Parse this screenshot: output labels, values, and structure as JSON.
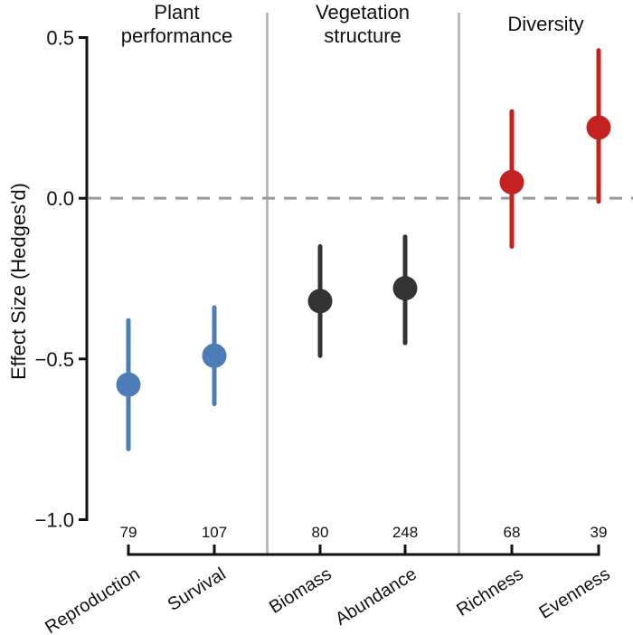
{
  "figure": {
    "group_headers": [
      {
        "label": "Plant\nperformance"
      },
      {
        "label": "Vegetation\nstructure"
      },
      {
        "label": "Diversity"
      }
    ],
    "y_axis_title": "Effect Size (Hedges'd)"
  },
  "chart_data": {
    "type": "scatter",
    "subtype": "point-range-forest-plot",
    "title": "",
    "xlabel": "",
    "ylabel": "Effect Size (Hedges'd)",
    "ylim": [
      -1.0,
      0.5
    ],
    "yticks": [
      0.5,
      0.0,
      -0.5,
      -1.0
    ],
    "ytick_labels": [
      "0.5",
      "0.0",
      "−0.5",
      "−1.0"
    ],
    "zero_reference_line": 0.0,
    "grid": false,
    "legend": "none",
    "colors": {
      "plant_performance": "#4d7db8",
      "vegetation_structure": "#333333",
      "diversity": "#c42221",
      "zero_line": "#999999",
      "panel_divider": "#b0b0b0",
      "axis": "#111111",
      "text": "#111111"
    },
    "groups": [
      {
        "name": "Plant performance",
        "color": "#4d7db8",
        "points": [
          {
            "category": "Reproduction",
            "n": "79",
            "mean": -0.58,
            "ci_low": -0.78,
            "ci_high": -0.38
          },
          {
            "category": "Survival",
            "n": "107",
            "mean": -0.49,
            "ci_low": -0.64,
            "ci_high": -0.34
          }
        ]
      },
      {
        "name": "Vegetation structure",
        "color": "#333333",
        "points": [
          {
            "category": "Biomass",
            "n": "80",
            "mean": -0.32,
            "ci_low": -0.49,
            "ci_high": -0.15
          },
          {
            "category": "Abundance",
            "n": "248",
            "mean": -0.28,
            "ci_low": -0.45,
            "ci_high": -0.12
          }
        ]
      },
      {
        "name": "Diversity",
        "color": "#c42221",
        "points": [
          {
            "category": "Richness",
            "n": "68",
            "mean": 0.05,
            "ci_low": -0.15,
            "ci_high": 0.27
          },
          {
            "category": "Evenness",
            "n": "39",
            "mean": 0.22,
            "ci_low": -0.01,
            "ci_high": 0.46
          }
        ]
      }
    ]
  }
}
